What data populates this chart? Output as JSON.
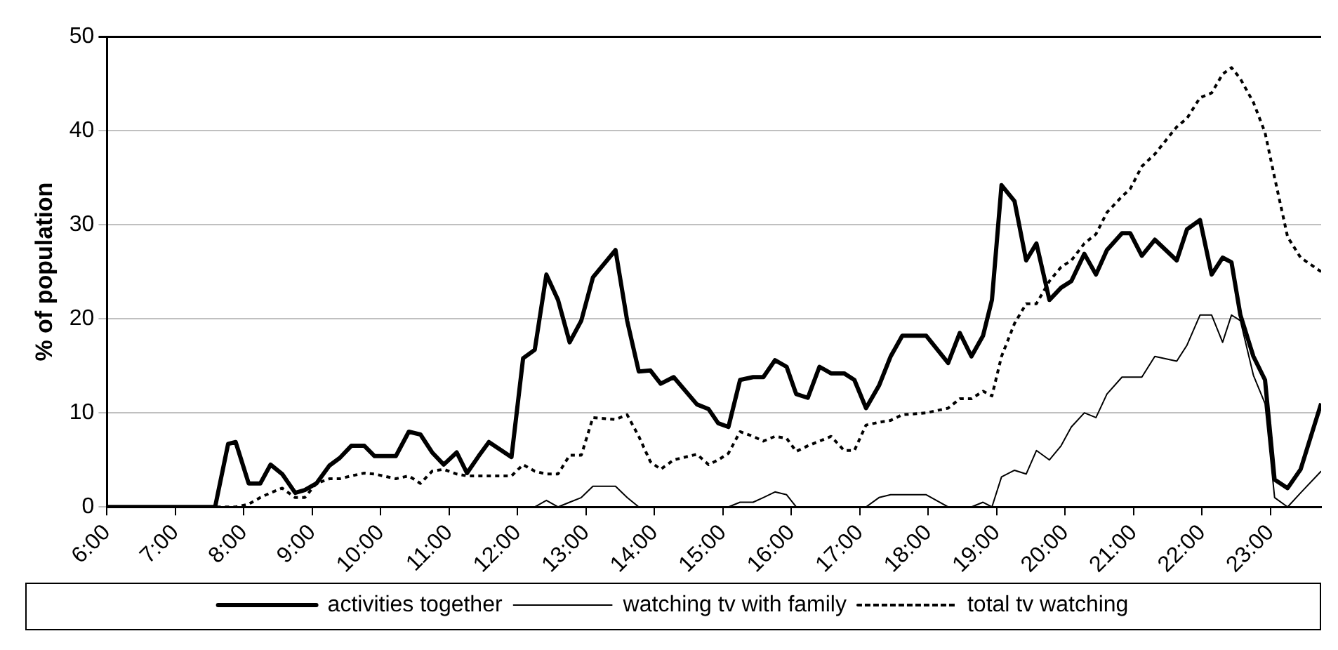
{
  "chart_data": {
    "type": "line",
    "ylabel": "% of population",
    "x": [
      6.0,
      7.58,
      7.77,
      7.88,
      8.07,
      8.24,
      8.39,
      8.56,
      8.75,
      8.89,
      9.06,
      9.25,
      9.4,
      9.57,
      9.76,
      9.91,
      10.22,
      10.41,
      10.58,
      10.75,
      10.92,
      11.11,
      11.26,
      11.43,
      11.58,
      11.91,
      12.08,
      12.25,
      12.42,
      12.59,
      12.76,
      12.93,
      13.1,
      13.43,
      13.6,
      13.77,
      13.94,
      14.09,
      14.28,
      14.62,
      14.79,
      14.93,
      15.08,
      15.25,
      15.44,
      15.59,
      15.76,
      15.93,
      16.07,
      16.24,
      16.41,
      16.58,
      16.77,
      16.92,
      17.09,
      17.28,
      17.45,
      17.62,
      17.97,
      18.29,
      18.46,
      18.63,
      18.8,
      18.93,
      19.07,
      19.26,
      19.43,
      19.58,
      19.77,
      19.94,
      20.09,
      20.28,
      20.45,
      20.61,
      20.83,
      20.95,
      21.12,
      21.31,
      21.63,
      21.78,
      21.97,
      22.14,
      22.3,
      22.43,
      22.56,
      22.75,
      22.92,
      23.06,
      23.25,
      23.44,
      23.74
    ],
    "series": [
      {
        "name": "activities together",
        "color": "#000000",
        "line_style": "solid",
        "values": [
          0,
          0,
          6.7,
          6.9,
          2.5,
          2.5,
          4.5,
          3.5,
          1.5,
          1.8,
          2.5,
          4.4,
          5.2,
          6.5,
          6.5,
          5.4,
          5.4,
          8,
          7.7,
          5.8,
          4.5,
          5.8,
          3.6,
          5.4,
          6.9,
          5.3,
          15.8,
          16.7,
          24.7,
          22,
          17.5,
          19.8,
          24.4,
          27.3,
          19.8,
          14.4,
          14.5,
          13.1,
          13.8,
          10.9,
          10.4,
          8.9,
          8.5,
          13.5,
          13.8,
          13.8,
          15.6,
          14.9,
          12,
          11.6,
          14.9,
          14.2,
          14.2,
          13.5,
          10.5,
          12.9,
          16,
          18.2,
          18.2,
          15.3,
          18.5,
          16,
          18.2,
          22,
          34.2,
          32.5,
          26.2,
          28,
          22,
          23.3,
          24,
          26.9,
          24.7,
          27.3,
          29.1,
          29.1,
          26.7,
          28.4,
          26.2,
          29.5,
          30.5,
          24.7,
          26.5,
          26,
          20.4,
          16,
          13.5,
          2.9,
          2,
          4,
          11
        ]
      },
      {
        "name": "watching tv with family",
        "color": "#000000",
        "line_style": "solid",
        "values": [
          0,
          0,
          0,
          0,
          0,
          0,
          0,
          0,
          0,
          0,
          0,
          0,
          0,
          0,
          0,
          0,
          0,
          0,
          0,
          0,
          0,
          0,
          0,
          0,
          0,
          0,
          0,
          0,
          0.7,
          0,
          0.5,
          1,
          2.2,
          2.2,
          1,
          0,
          0,
          0,
          0,
          0,
          0,
          0,
          0,
          0.5,
          0.5,
          1,
          1.6,
          1.3,
          0,
          0,
          0,
          0,
          0,
          0,
          0,
          1,
          1.3,
          1.3,
          1.3,
          0,
          0,
          0,
          0.5,
          0,
          3.2,
          3.9,
          3.5,
          6,
          5,
          6.5,
          8.5,
          10,
          9.5,
          12,
          13.8,
          13.8,
          13.8,
          16,
          15.5,
          17.2,
          20.4,
          20.4,
          17.5,
          20.4,
          19.8,
          14,
          11,
          1,
          0,
          1.5,
          3.8
        ]
      },
      {
        "name": "total tv watching",
        "color": "#000000",
        "line_style": "dotted",
        "values": [
          0,
          0,
          0,
          0,
          0.3,
          1,
          1.5,
          2,
          1,
          1,
          2.5,
          3,
          3,
          3.3,
          3.6,
          3.5,
          3,
          3.3,
          2.5,
          3.8,
          4,
          3.5,
          3.3,
          3.3,
          3.3,
          3.3,
          4.5,
          3.8,
          3.5,
          3.5,
          5.5,
          5.5,
          9.5,
          9.3,
          9.8,
          7.5,
          4.8,
          4,
          5,
          5.6,
          4.5,
          5,
          5.7,
          8,
          7.5,
          7,
          7.5,
          7.3,
          5.9,
          6.5,
          7,
          7.5,
          6,
          6,
          8.7,
          9,
          9.2,
          9.8,
          10,
          10.5,
          11.5,
          11.5,
          12.3,
          11.8,
          16,
          19.5,
          21.6,
          21.6,
          24,
          25.5,
          26.2,
          28,
          29,
          31.3,
          33,
          33.8,
          36.2,
          37.5,
          40.4,
          41.3,
          43.5,
          44,
          46,
          46.7,
          45.5,
          43,
          39.8,
          35,
          28.7,
          26.5,
          25
        ]
      }
    ],
    "xlim": [
      6,
      23.74
    ],
    "xticks": [
      {
        "value": 6,
        "label": "6:00"
      },
      {
        "value": 7,
        "label": "7:00"
      },
      {
        "value": 8,
        "label": "8:00"
      },
      {
        "value": 9,
        "label": "9:00"
      },
      {
        "value": 10,
        "label": "10:00"
      },
      {
        "value": 11,
        "label": "11:00"
      },
      {
        "value": 12,
        "label": "12:00"
      },
      {
        "value": 13,
        "label": "13:00"
      },
      {
        "value": 14,
        "label": "14:00"
      },
      {
        "value": 15,
        "label": "15:00"
      },
      {
        "value": 16,
        "label": "16:00"
      },
      {
        "value": 17,
        "label": "17:00"
      },
      {
        "value": 18,
        "label": "18:00"
      },
      {
        "value": 19,
        "label": "19:00"
      },
      {
        "value": 20,
        "label": "20:00"
      },
      {
        "value": 21,
        "label": "21:00"
      },
      {
        "value": 22,
        "label": "22:00"
      },
      {
        "value": 23,
        "label": "23:00"
      }
    ],
    "ylim": [
      0,
      50
    ],
    "yticks": [
      0,
      10,
      20,
      30,
      40,
      50
    ],
    "grid": "y",
    "legend": "bottom",
    "marker": "none"
  }
}
